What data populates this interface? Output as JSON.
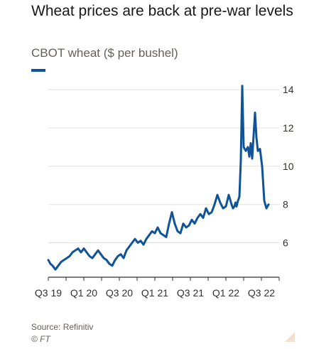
{
  "header": {
    "title": "Wheat prices are back at pre-war levels",
    "subtitle": "CBOT wheat ($ per bushel)"
  },
  "footer": {
    "source": "Source: Refinitiv",
    "copyright": "© FT"
  },
  "colors": {
    "series": "#0f5499",
    "grid": "#e6dfd9",
    "text": "#33302e",
    "muted": "#66605c"
  },
  "chart_data": {
    "type": "line",
    "title": "Wheat prices are back at pre-war levels",
    "subtitle": "CBOT wheat ($ per bushel)",
    "xlabel": "",
    "ylabel": "",
    "x_ticks": [
      "Q3 19",
      "Q1 20",
      "Q3 20",
      "Q1 21",
      "Q3 21",
      "Q1 22",
      "Q3 22"
    ],
    "y_ticks": [
      6,
      8,
      10,
      12,
      14
    ],
    "xlim": [
      2019.5,
      2022.75
    ],
    "ylim": [
      4.2,
      14.6
    ],
    "grid": true,
    "y_axis_side": "right",
    "series": [
      {
        "name": "",
        "x": [
          2019.5,
          2019.53,
          2019.56,
          2019.6,
          2019.64,
          2019.68,
          2019.72,
          2019.76,
          2019.8,
          2019.84,
          2019.88,
          2019.92,
          2019.96,
          2020.0,
          2020.04,
          2020.08,
          2020.12,
          2020.16,
          2020.2,
          2020.24,
          2020.28,
          2020.32,
          2020.36,
          2020.4,
          2020.44,
          2020.48,
          2020.52,
          2020.56,
          2020.6,
          2020.64,
          2020.68,
          2020.72,
          2020.76,
          2020.8,
          2020.84,
          2020.88,
          2020.92,
          2020.96,
          2021.0,
          2021.04,
          2021.08,
          2021.12,
          2021.16,
          2021.2,
          2021.24,
          2021.28,
          2021.32,
          2021.36,
          2021.4,
          2021.44,
          2021.48,
          2021.52,
          2021.56,
          2021.6,
          2021.64,
          2021.68,
          2021.72,
          2021.76,
          2021.8,
          2021.84,
          2021.88,
          2021.92,
          2021.96,
          2022.0,
          2022.04,
          2022.08,
          2022.1,
          2022.12,
          2022.135,
          2022.15,
          2022.17,
          2022.19,
          2022.21,
          2022.23,
          2022.25,
          2022.28,
          2022.31,
          2022.33,
          2022.35,
          2022.37,
          2022.39,
          2022.41,
          2022.43,
          2022.45,
          2022.48,
          2022.51,
          2022.54,
          2022.57,
          2022.6
        ],
        "values": [
          5.1,
          4.9,
          4.8,
          4.6,
          4.8,
          5.0,
          5.1,
          5.2,
          5.3,
          5.5,
          5.6,
          5.7,
          5.5,
          5.7,
          5.5,
          5.3,
          5.2,
          5.4,
          5.6,
          5.4,
          5.2,
          5.1,
          4.9,
          4.8,
          5.1,
          5.3,
          5.4,
          5.2,
          5.6,
          5.8,
          6.0,
          6.2,
          6.0,
          6.1,
          5.9,
          6.2,
          6.4,
          6.6,
          6.5,
          6.8,
          6.5,
          6.4,
          6.3,
          7.0,
          7.6,
          7.0,
          6.6,
          6.5,
          7.0,
          6.8,
          6.9,
          7.2,
          7.0,
          7.3,
          7.5,
          7.3,
          7.8,
          7.5,
          7.6,
          8.0,
          8.5,
          8.1,
          7.8,
          7.9,
          8.5,
          8.0,
          7.8,
          7.9,
          8.1,
          7.9,
          8.2,
          8.4,
          10.3,
          14.2,
          11.0,
          10.8,
          11.0,
          10.5,
          11.2,
          10.4,
          11.6,
          12.8,
          11.5,
          10.8,
          10.9,
          10.0,
          8.2,
          7.8,
          8.0
        ]
      }
    ]
  }
}
